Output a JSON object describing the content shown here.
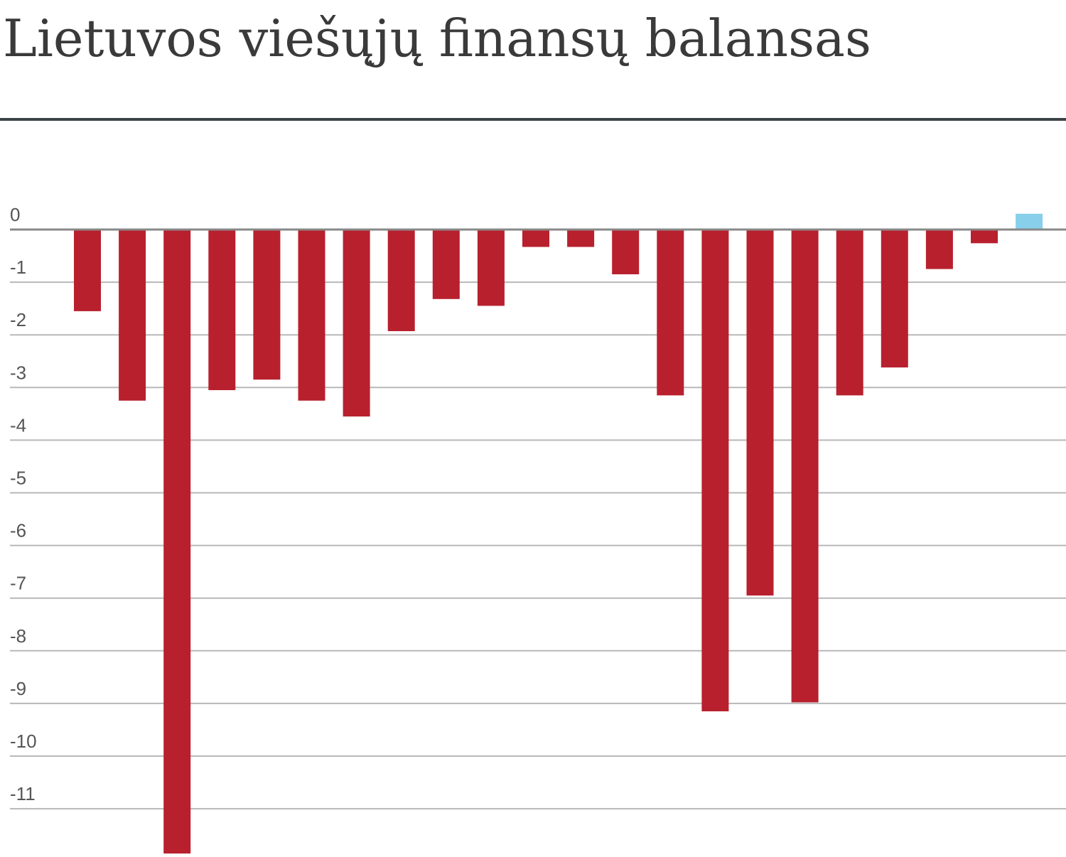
{
  "chart_data": {
    "type": "bar",
    "title": "Lietuvos viešųjų finansų balansas",
    "xlabel": "",
    "ylabel": "",
    "ylim": [
      -11.8,
      0.3
    ],
    "yticks": [
      0,
      -1,
      -2,
      -3,
      -4,
      -5,
      -6,
      -7,
      -8,
      -9,
      -10,
      -11
    ],
    "grid": true,
    "legend": "none",
    "colors": {
      "negative": "#b8202e",
      "positive": "#87cfea",
      "grid": "#b8b8b8",
      "zero_line": "#888888",
      "title": "#3a3a3a",
      "rule": "#3c4347"
    },
    "values": [
      -1.55,
      -3.25,
      -11.85,
      -3.05,
      -2.85,
      -3.25,
      -3.55,
      -1.93,
      -1.32,
      -1.45,
      -0.33,
      -0.33,
      -0.85,
      -3.15,
      -9.15,
      -6.95,
      -8.98,
      -3.15,
      -2.62,
      -0.75,
      -0.26,
      0.3
    ]
  }
}
